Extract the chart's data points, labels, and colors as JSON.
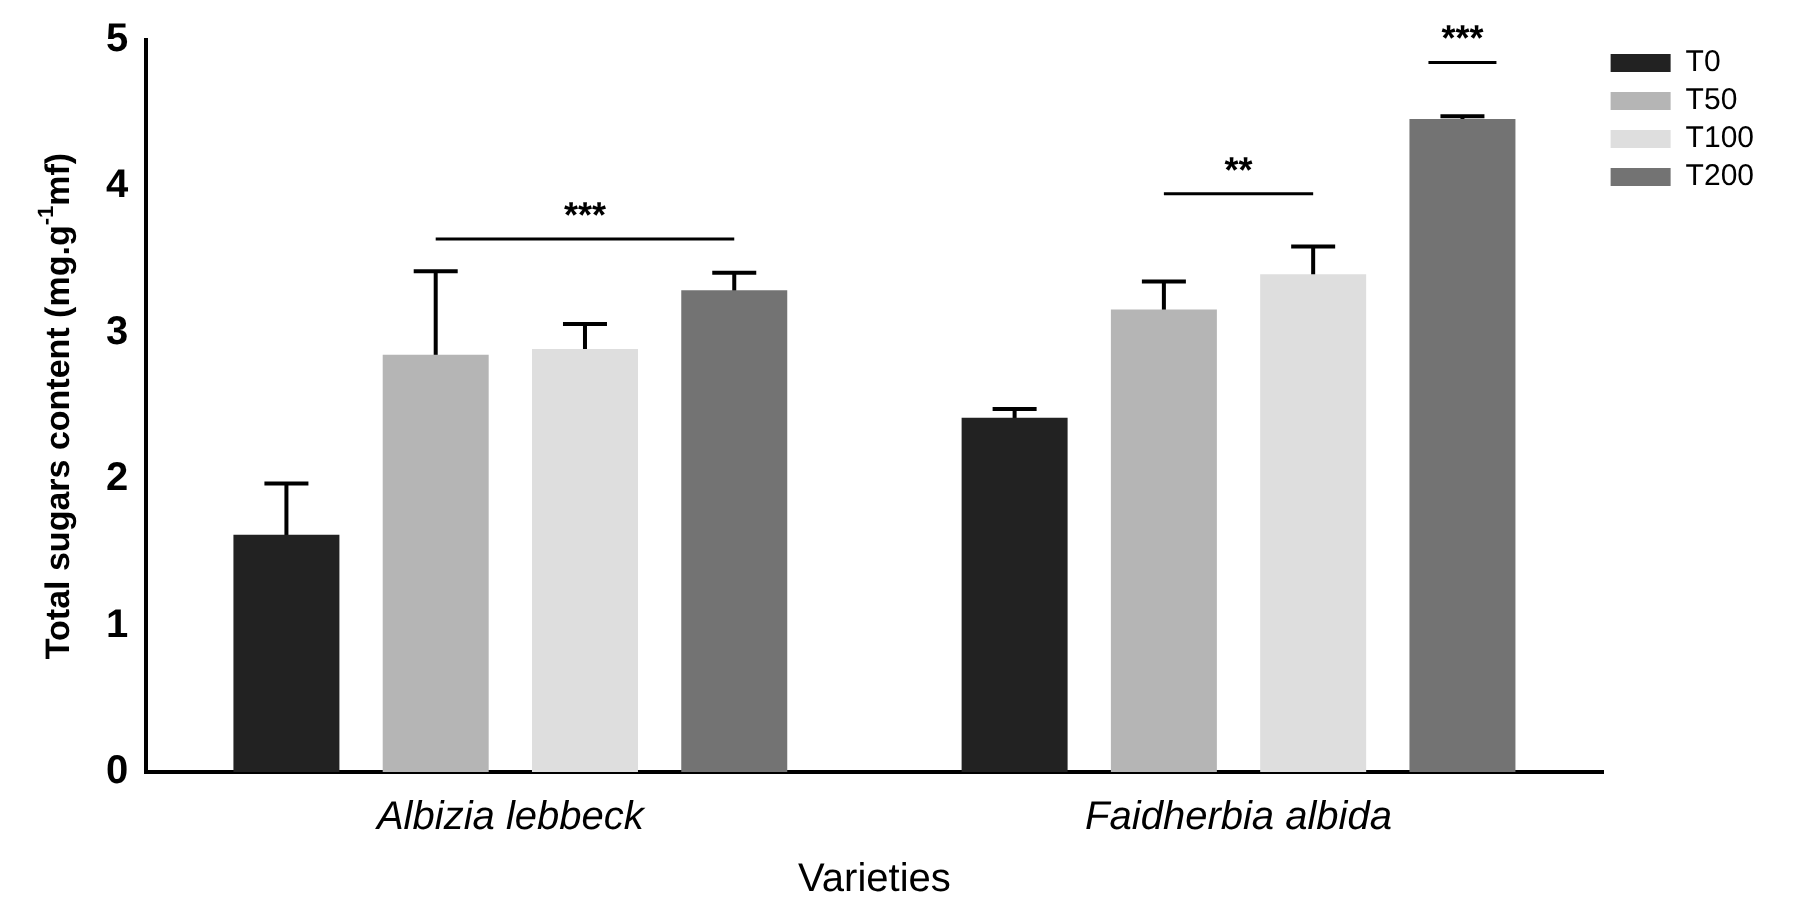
{
  "chart_data": {
    "type": "bar",
    "xlabel": "Varieties",
    "ylabel": "Total sugars content (mg.g$^{-1}$mf)",
    "categories": [
      "Albizia lebbeck",
      "Faidherbia albida"
    ],
    "series": [
      {
        "name": "T0",
        "color": "#222222",
        "values": [
          1.62,
          2.42
        ],
        "errors": [
          0.35,
          0.06
        ]
      },
      {
        "name": "T50",
        "color": "#b5b5b5",
        "values": [
          2.85,
          3.16
        ],
        "errors": [
          0.57,
          0.19
        ]
      },
      {
        "name": "T100",
        "color": "#dedede",
        "values": [
          2.89,
          3.4
        ],
        "errors": [
          0.17,
          0.19
        ]
      },
      {
        "name": "T200",
        "color": "#737373",
        "values": [
          3.29,
          4.46
        ],
        "errors": [
          0.12,
          0.02
        ]
      }
    ],
    "ylim": [
      0,
      5
    ],
    "yticks": [
      0,
      1,
      2,
      3,
      4,
      5
    ],
    "grid": false,
    "legend": "top right",
    "annotations": [
      "***",
      "**",
      "***"
    ]
  }
}
